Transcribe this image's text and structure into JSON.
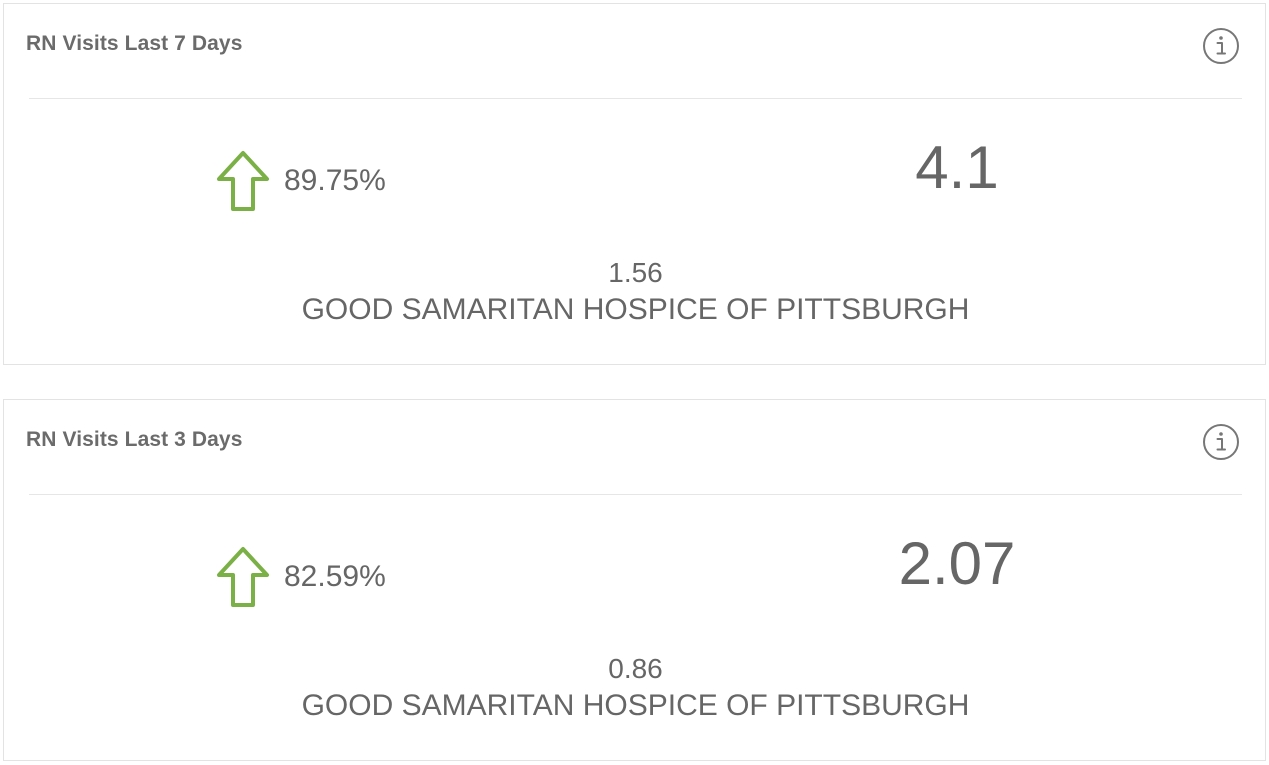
{
  "cards": [
    {
      "title": "RN Visits Last 7 Days",
      "info_icon": "info-circle-icon",
      "trend_icon": "arrow-up-icon",
      "trend_color": "#7ab045",
      "trend_percent": "89.75%",
      "value": "4.1",
      "comparison_value": "1.56",
      "organization": "GOOD SAMARITAN HOSPICE OF PITTSBURGH"
    },
    {
      "title": "RN Visits Last 3 Days",
      "info_icon": "info-circle-icon",
      "trend_icon": "arrow-up-icon",
      "trend_color": "#7ab045",
      "trend_percent": "82.59%",
      "value": "2.07",
      "comparison_value": "0.86",
      "organization": "GOOD SAMARITAN HOSPICE OF PITTSBURGH"
    }
  ]
}
